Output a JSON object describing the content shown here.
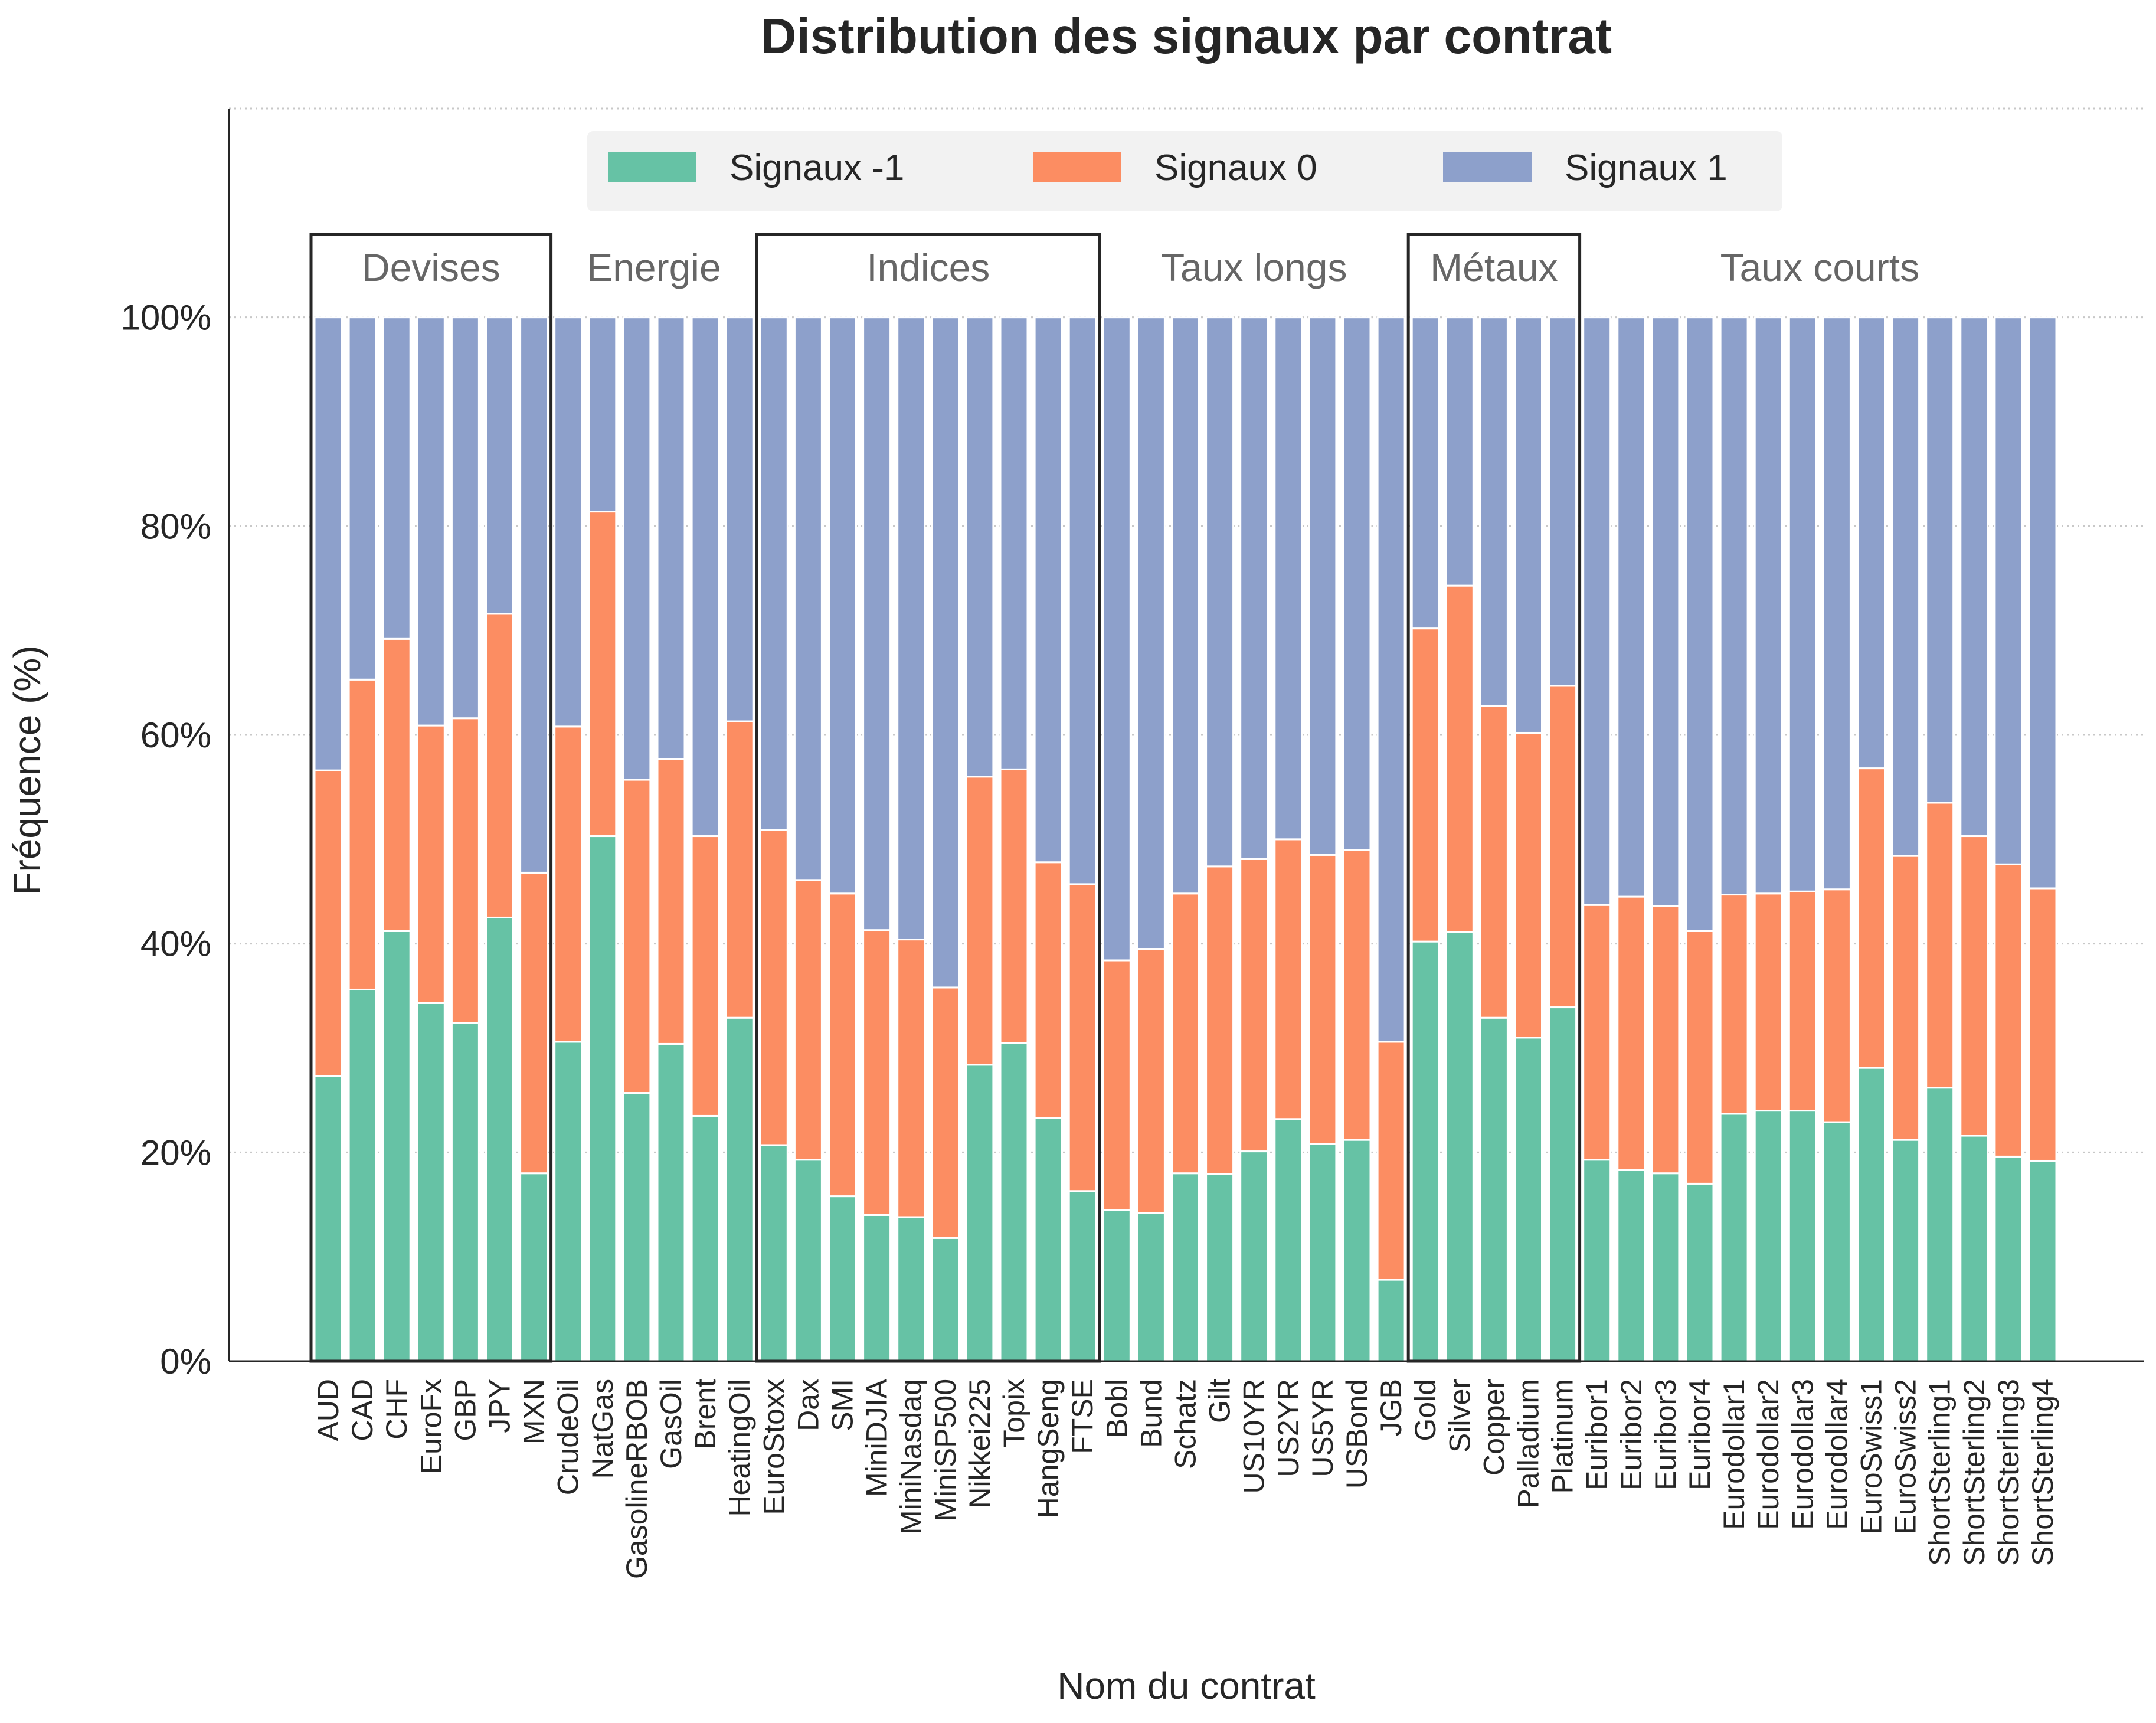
{
  "chart_data": {
    "type": "bar",
    "stacked": true,
    "title": "Distribution des signaux par contrat",
    "xlabel": "Nom du contrat",
    "ylabel": "Fréquence (%)",
    "ylim": [
      0,
      120
    ],
    "yticks": [
      0,
      20,
      40,
      60,
      80,
      100
    ],
    "ytick_format": "{v}%",
    "grid": "horizontal dotted",
    "legend_position": "top-center",
    "categories": [
      "AUD",
      "CAD",
      "CHF",
      "EuroFx",
      "GBP",
      "JPY",
      "MXN",
      "CrudeOil",
      "NatGas",
      "GasolineRBOB",
      "GasOil",
      "Brent",
      "HeatingOil",
      "EuroStoxx",
      "Dax",
      "SMI",
      "MiniDJIA",
      "MiniNasdaq",
      "MiniSP500",
      "Nikkei225",
      "Topix",
      "HangSeng",
      "FTSE",
      "Bobl",
      "Bund",
      "Schatz",
      "Gilt",
      "US10YR",
      "US2YR",
      "US5YR",
      "USBond",
      "JGB",
      "Gold",
      "Silver",
      "Copper",
      "Palladium",
      "Platinum",
      "Euribor1",
      "Euribor2",
      "Euribor3",
      "Euribor4",
      "Eurodollar1",
      "Eurodollar2",
      "Eurodollar3",
      "Eurodollar4",
      "EuroSwiss1",
      "EuroSwiss2",
      "ShortSterling1",
      "ShortSterling2",
      "ShortSterling3",
      "ShortSterling4"
    ],
    "series": [
      {
        "name": "Signaux -1",
        "color": "#66c2a5",
        "values": [
          27.3,
          35.6,
          41.2,
          34.3,
          32.4,
          42.5,
          18.0,
          30.6,
          50.3,
          25.7,
          30.4,
          23.5,
          32.9,
          20.7,
          19.3,
          15.8,
          14.0,
          13.8,
          11.8,
          28.4,
          30.5,
          23.3,
          16.3,
          14.5,
          14.2,
          18.0,
          17.9,
          20.1,
          23.2,
          20.8,
          21.2,
          7.8,
          40.2,
          41.1,
          32.9,
          31.0,
          33.9,
          19.3,
          18.3,
          18.0,
          17.0,
          23.7,
          24.0,
          24.0,
          22.9,
          28.1,
          21.2,
          26.2,
          21.6,
          19.6,
          19.2
        ]
      },
      {
        "name": "Signaux 0",
        "color": "#fc8d62",
        "values": [
          29.3,
          29.7,
          28.0,
          26.6,
          29.2,
          29.1,
          28.8,
          30.2,
          31.1,
          30.0,
          27.3,
          26.8,
          28.4,
          30.2,
          26.8,
          29.0,
          27.3,
          26.6,
          24.0,
          27.6,
          26.2,
          24.5,
          29.4,
          23.9,
          25.3,
          26.8,
          29.5,
          28.0,
          26.8,
          27.7,
          27.8,
          22.8,
          30.0,
          33.2,
          29.9,
          29.2,
          30.8,
          24.4,
          26.2,
          25.6,
          24.2,
          21.0,
          20.8,
          21.0,
          22.3,
          28.7,
          27.2,
          27.3,
          28.7,
          28.0,
          26.1
        ]
      },
      {
        "name": "Signaux 1",
        "color": "#8da0cb",
        "values": [
          43.4,
          34.7,
          30.8,
          39.1,
          38.4,
          28.4,
          53.2,
          39.2,
          18.6,
          44.3,
          42.3,
          49.7,
          38.7,
          49.1,
          53.9,
          55.2,
          58.7,
          59.6,
          64.2,
          44.0,
          43.3,
          52.2,
          54.3,
          61.6,
          60.5,
          55.2,
          52.6,
          51.9,
          50.0,
          51.5,
          51.0,
          69.4,
          29.8,
          25.7,
          37.2,
          39.8,
          35.3,
          56.3,
          55.5,
          56.4,
          58.8,
          55.3,
          55.2,
          55.0,
          54.8,
          43.2,
          51.6,
          46.5,
          49.7,
          52.4,
          54.7
        ]
      }
    ],
    "groups": [
      {
        "label": "Devises",
        "start": 0,
        "end": 6,
        "boxed": true
      },
      {
        "label": "Energie",
        "start": 7,
        "end": 12,
        "boxed": false
      },
      {
        "label": "Indices",
        "start": 13,
        "end": 22,
        "boxed": true
      },
      {
        "label": "Taux longs",
        "start": 23,
        "end": 31,
        "boxed": false
      },
      {
        "label": "Métaux",
        "start": 32,
        "end": 36,
        "boxed": true
      },
      {
        "label": "Taux courts",
        "start": 37,
        "end": 50,
        "boxed": false
      }
    ]
  }
}
